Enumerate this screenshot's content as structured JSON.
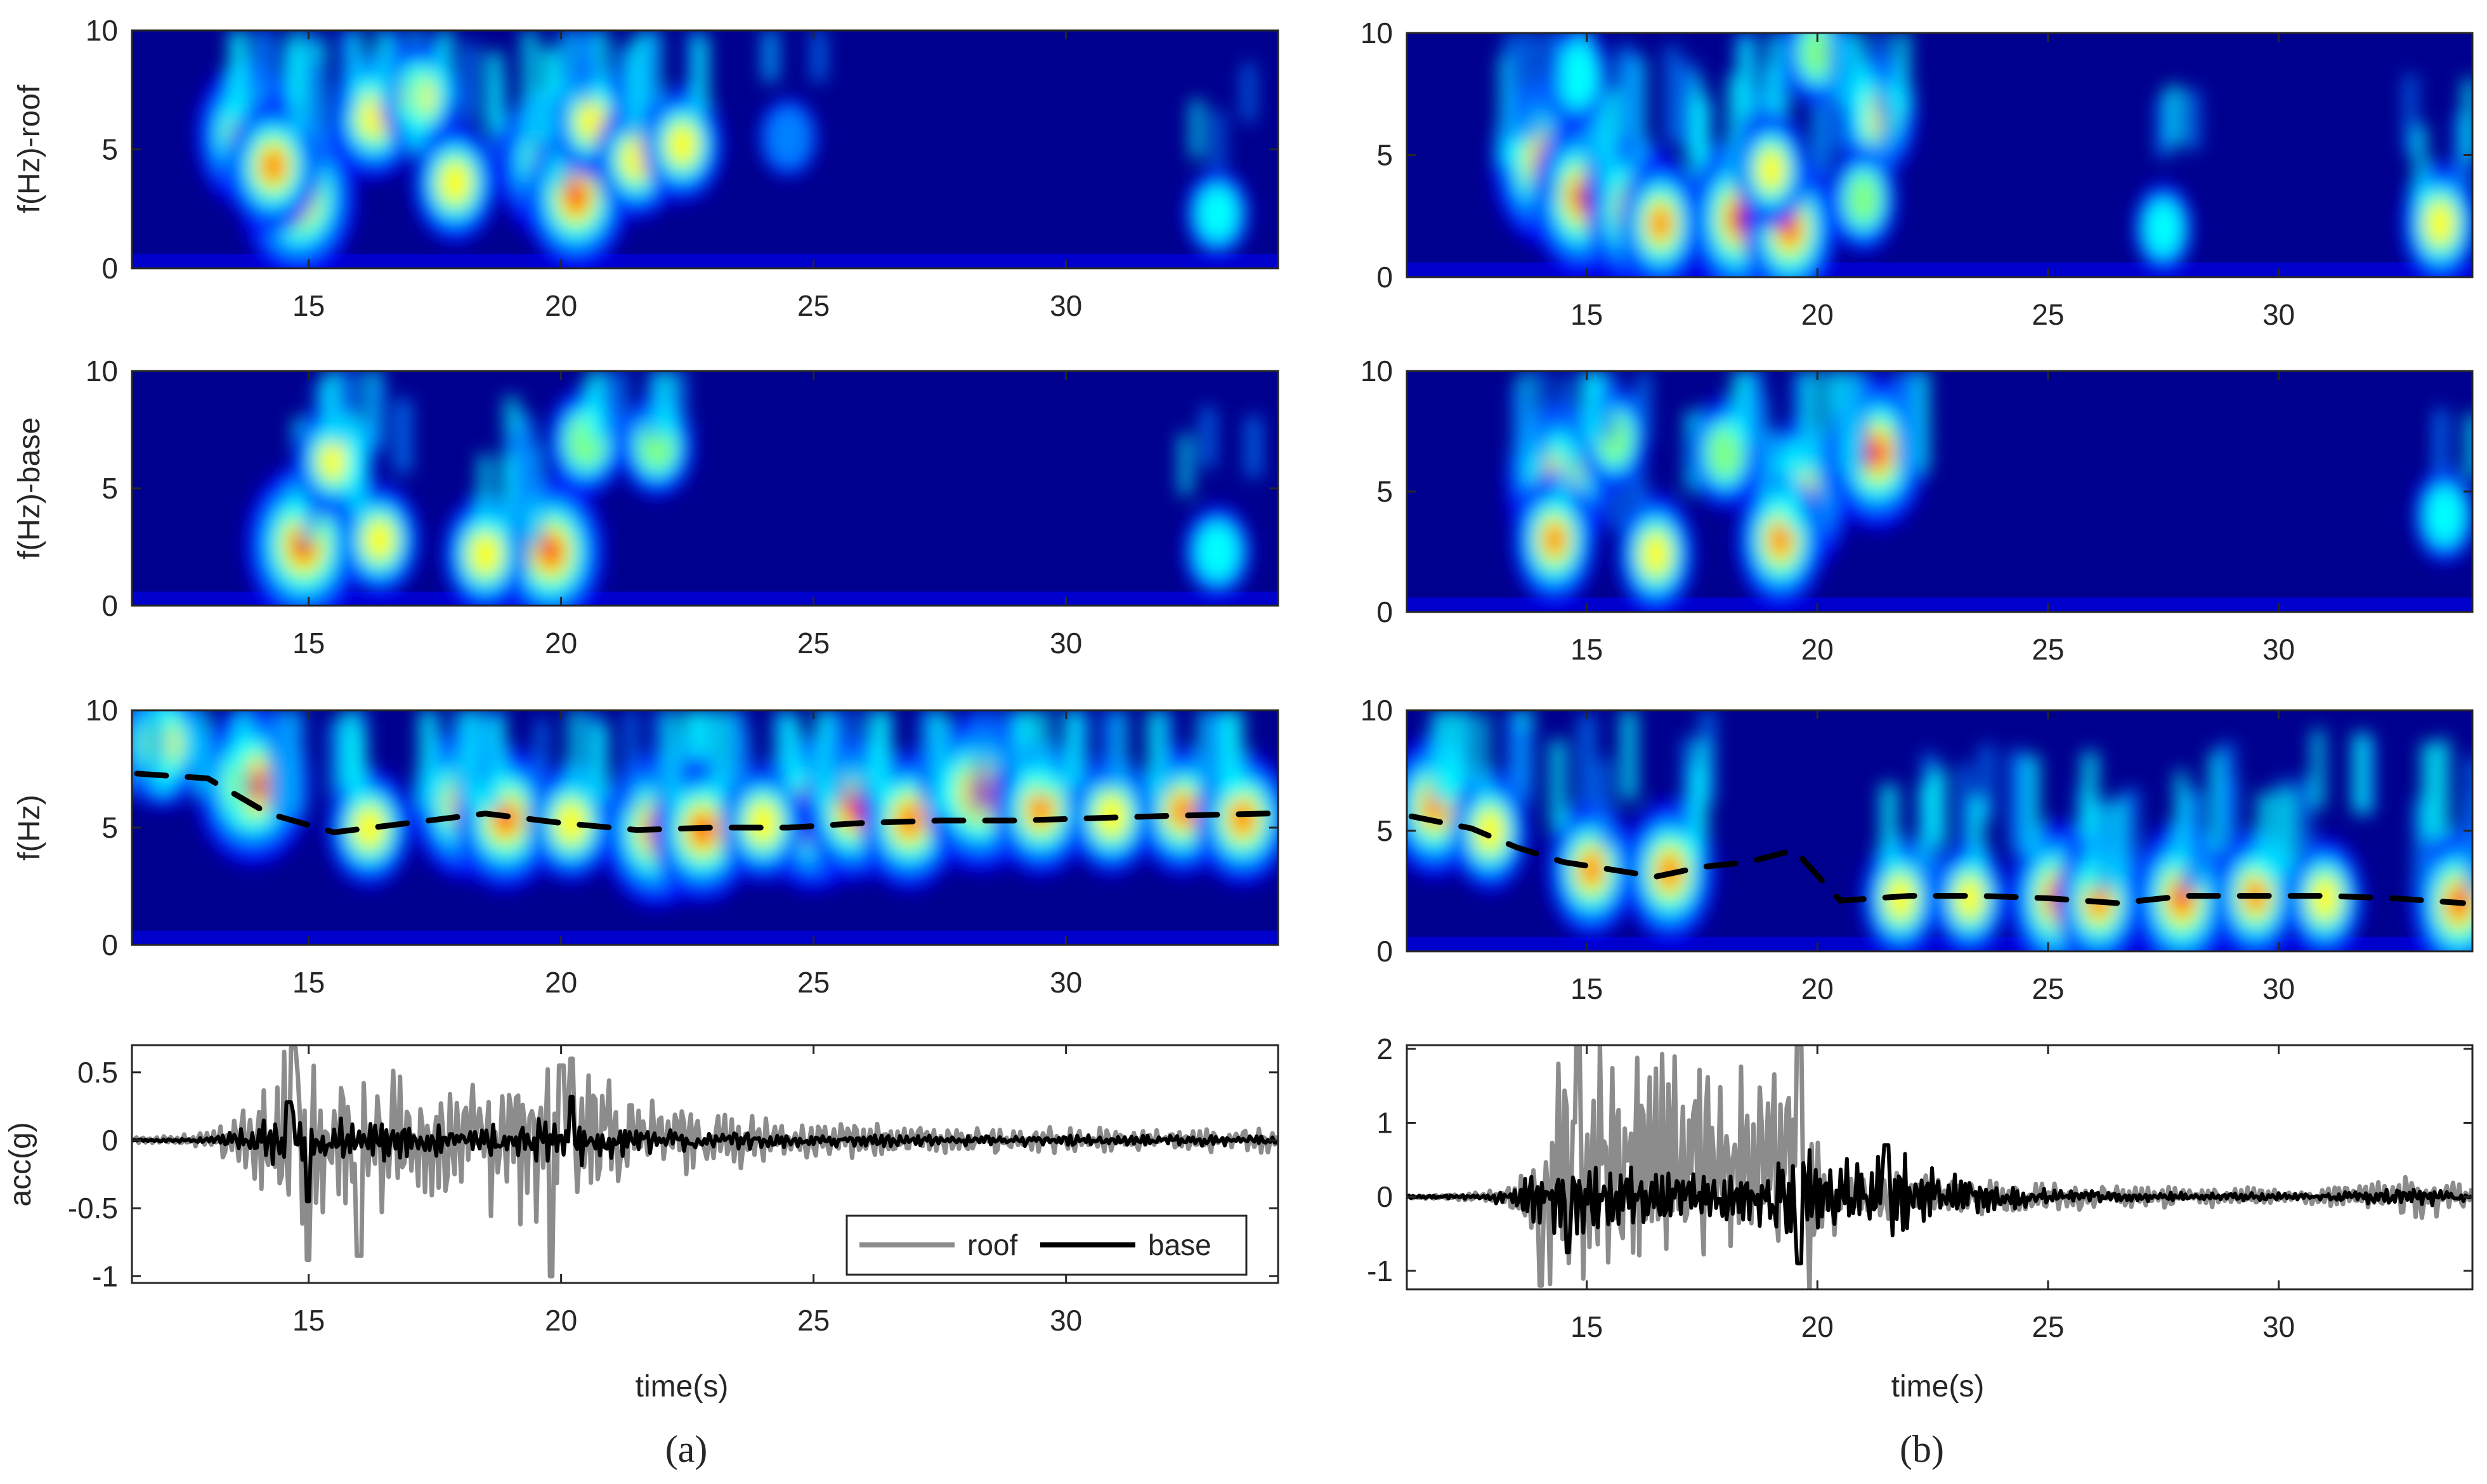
{
  "colors": {
    "colormap": [
      "#00008f",
      "#0000ff",
      "#0080ff",
      "#00ffff",
      "#80ff80",
      "#ffff00",
      "#ff8000",
      "#ff0000",
      "#800000"
    ],
    "roof": "#8c8c8c",
    "base": "#000000",
    "ridge": "#000000",
    "axis": "#262626"
  },
  "captions": [
    "(a)",
    "(b)"
  ],
  "chart_data": [
    {
      "type": "heatmap",
      "panel": "a",
      "row": 1,
      "ylabel": "f(Hz)-roof",
      "xlim": [
        11.5,
        34.2
      ],
      "ylim": [
        0,
        10
      ],
      "xticks": [
        15,
        20,
        25,
        30
      ],
      "yticks": [
        0,
        5,
        10
      ],
      "hotspots": [
        {
          "t": 14.8,
          "f": 3.0,
          "a": 1.0
        },
        {
          "t": 13.8,
          "f": 5.6,
          "a": 0.85
        },
        {
          "t": 14.3,
          "f": 4.3,
          "a": 0.75
        },
        {
          "t": 16.3,
          "f": 6.4,
          "a": 0.65
        },
        {
          "t": 17.2,
          "f": 7.2,
          "a": 0.55
        },
        {
          "t": 17.9,
          "f": 3.6,
          "a": 0.6
        },
        {
          "t": 19.8,
          "f": 4.4,
          "a": 0.9
        },
        {
          "t": 20.3,
          "f": 3.0,
          "a": 0.85
        },
        {
          "t": 20.6,
          "f": 6.2,
          "a": 0.55
        },
        {
          "t": 21.5,
          "f": 4.6,
          "a": 0.6
        },
        {
          "t": 22.4,
          "f": 5.2,
          "a": 0.55
        },
        {
          "t": 33.0,
          "f": 2.3,
          "a": 0.3
        },
        {
          "t": 24.5,
          "f": 5.5,
          "a": 0.2
        }
      ]
    },
    {
      "type": "heatmap",
      "panel": "a",
      "row": 2,
      "ylabel": "f(Hz)-base",
      "xlim": [
        11.5,
        34.2
      ],
      "ylim": [
        0,
        10
      ],
      "xticks": [
        15,
        20,
        25,
        30
      ],
      "yticks": [
        0,
        5,
        10
      ],
      "hotspots": [
        {
          "t": 14.9,
          "f": 2.6,
          "a": 1.0
        },
        {
          "t": 15.5,
          "f": 6.2,
          "a": 0.55
        },
        {
          "t": 16.4,
          "f": 2.8,
          "a": 0.55
        },
        {
          "t": 19.8,
          "f": 2.3,
          "a": 0.9
        },
        {
          "t": 18.5,
          "f": 2.2,
          "a": 0.6
        },
        {
          "t": 20.5,
          "f": 7.0,
          "a": 0.5
        },
        {
          "t": 21.9,
          "f": 6.8,
          "a": 0.45
        },
        {
          "t": 33.0,
          "f": 2.3,
          "a": 0.35
        }
      ]
    },
    {
      "type": "heatmap",
      "panel": "a",
      "row": 3,
      "ylabel": "f(Hz)",
      "xlim": [
        11.5,
        34.2
      ],
      "ylim": [
        0,
        10
      ],
      "xticks": [
        15,
        20,
        25,
        30
      ],
      "yticks": [
        0,
        5,
        10
      ],
      "ridge_t": [
        11.6,
        13.0,
        14.2,
        15.5,
        17.0,
        18.5,
        20.0,
        21.5,
        23.0,
        24.5,
        26.0,
        27.5,
        29.0,
        30.5,
        32.0,
        34.0
      ],
      "ridge_f": [
        7.3,
        7.1,
        5.6,
        4.8,
        5.2,
        5.6,
        5.2,
        4.9,
        5.0,
        5.0,
        5.2,
        5.3,
        5.3,
        5.4,
        5.5,
        5.6
      ],
      "hotspots": [
        {
          "t": 13.9,
          "f": 6.8,
          "a": 1.0
        },
        {
          "t": 12.1,
          "f": 8.6,
          "a": 0.7
        },
        {
          "t": 18.1,
          "f": 6.0,
          "a": 0.9
        },
        {
          "t": 18.9,
          "f": 5.4,
          "a": 0.85
        },
        {
          "t": 21.9,
          "f": 4.9,
          "a": 0.95
        },
        {
          "t": 22.8,
          "f": 4.9,
          "a": 0.85
        },
        {
          "t": 25.0,
          "f": 5.6,
          "a": 0.95
        },
        {
          "t": 25.8,
          "f": 5.8,
          "a": 0.85
        },
        {
          "t": 26.9,
          "f": 5.3,
          "a": 0.8
        },
        {
          "t": 28.3,
          "f": 6.5,
          "a": 1.0
        },
        {
          "t": 29.5,
          "f": 5.8,
          "a": 0.75
        },
        {
          "t": 32.3,
          "f": 5.7,
          "a": 0.7
        },
        {
          "t": 33.5,
          "f": 5.4,
          "a": 0.75
        },
        {
          "t": 16.2,
          "f": 5.0,
          "a": 0.6
        },
        {
          "t": 20.2,
          "f": 5.2,
          "a": 0.6
        },
        {
          "t": 24.0,
          "f": 5.2,
          "a": 0.6
        },
        {
          "t": 30.9,
          "f": 5.5,
          "a": 0.6
        }
      ]
    },
    {
      "type": "line",
      "panel": "a",
      "row": 4,
      "ylabel": "acc(g)",
      "xlabel": "time(s)",
      "xlim": [
        11.5,
        34.2
      ],
      "ylim": [
        -1.05,
        0.7
      ],
      "xticks": [
        15,
        20,
        25,
        30
      ],
      "yticks": [
        -1,
        -0.5,
        0,
        0.5
      ],
      "ytick_labels": [
        "-1",
        "-0.5",
        "0",
        "0.5"
      ],
      "legend": {
        "position": "lower-right",
        "entries": [
          "roof",
          "base"
        ]
      },
      "envelope": {
        "t": [
          11.5,
          13.0,
          13.8,
          14.6,
          15.5,
          16.5,
          18.0,
          19.5,
          20.3,
          21.5,
          23.0,
          25.0,
          28.0,
          31.0,
          34.2
        ],
        "roof": [
          0.02,
          0.06,
          0.3,
          0.8,
          0.6,
          0.55,
          0.45,
          0.75,
          0.9,
          0.35,
          0.25,
          0.15,
          0.1,
          0.1,
          0.1
        ],
        "base": [
          0.01,
          0.02,
          0.12,
          0.25,
          0.18,
          0.16,
          0.12,
          0.2,
          0.22,
          0.1,
          0.08,
          0.05,
          0.04,
          0.05,
          0.04
        ]
      },
      "series": [
        {
          "name": "roof",
          "t": [
            14.7,
            15.0,
            16.0,
            19.8,
            20.2,
            20.0
          ],
          "peaks": [
            0.68,
            -0.88,
            -0.85,
            -1.0,
            0.6,
            0.55
          ]
        },
        {
          "name": "base",
          "t": [
            14.6,
            15.0,
            20.2
          ],
          "peaks": [
            0.28,
            -0.45,
            0.32
          ]
        }
      ]
    },
    {
      "type": "heatmap",
      "panel": "b",
      "row": 1,
      "xlim": [
        11.1,
        34.2
      ],
      "ylim": [
        0,
        10
      ],
      "xticks": [
        15,
        20,
        25,
        30
      ],
      "yticks": [
        0,
        5,
        10
      ],
      "hotspots": [
        {
          "t": 14.1,
          "f": 4.7,
          "a": 1.0
        },
        {
          "t": 14.9,
          "f": 3.3,
          "a": 0.95
        },
        {
          "t": 16.0,
          "f": 2.7,
          "a": 0.85
        },
        {
          "t": 16.6,
          "f": 2.2,
          "a": 0.7
        },
        {
          "t": 18.3,
          "f": 2.4,
          "a": 0.95
        },
        {
          "t": 19.4,
          "f": 2.0,
          "a": 0.85
        },
        {
          "t": 19.0,
          "f": 4.4,
          "a": 0.55
        },
        {
          "t": 21.3,
          "f": 6.6,
          "a": 0.6
        },
        {
          "t": 21.0,
          "f": 3.2,
          "a": 0.45
        },
        {
          "t": 20.0,
          "f": 9.2,
          "a": 0.45
        },
        {
          "t": 14.8,
          "f": 8.2,
          "a": 0.4
        },
        {
          "t": 33.5,
          "f": 2.2,
          "a": 0.6
        },
        {
          "t": 27.5,
          "f": 2.0,
          "a": 0.3
        }
      ]
    },
    {
      "type": "heatmap",
      "panel": "b",
      "row": 2,
      "xlim": [
        11.1,
        34.2
      ],
      "ylim": [
        0,
        10
      ],
      "xticks": [
        15,
        20,
        25,
        30
      ],
      "yticks": [
        0,
        5,
        10
      ],
      "hotspots": [
        {
          "t": 14.4,
          "f": 5.3,
          "a": 1.0
        },
        {
          "t": 14.3,
          "f": 3.0,
          "a": 0.7
        },
        {
          "t": 16.5,
          "f": 2.4,
          "a": 0.6
        },
        {
          "t": 19.6,
          "f": 4.7,
          "a": 0.9
        },
        {
          "t": 19.2,
          "f": 3.0,
          "a": 0.75
        },
        {
          "t": 21.3,
          "f": 6.6,
          "a": 0.9
        },
        {
          "t": 18.0,
          "f": 6.6,
          "a": 0.5
        },
        {
          "t": 15.6,
          "f": 7.2,
          "a": 0.45
        },
        {
          "t": 33.6,
          "f": 4.0,
          "a": 0.35
        }
      ]
    },
    {
      "type": "heatmap",
      "panel": "b",
      "row": 3,
      "xlim": [
        11.1,
        34.2
      ],
      "ylim": [
        0,
        10
      ],
      "xticks": [
        15,
        20,
        25,
        30
      ],
      "yticks": [
        0,
        5,
        10
      ],
      "ridge_t": [
        11.2,
        12.5,
        13.5,
        14.5,
        15.5,
        16.5,
        17.5,
        18.5,
        19.5,
        20.5,
        22.0,
        23.5,
        25.0,
        26.5,
        28.0,
        29.5,
        31.0,
        32.5,
        34.0
      ],
      "ridge_f": [
        5.6,
        5.1,
        4.3,
        3.7,
        3.4,
        3.1,
        3.5,
        3.7,
        4.2,
        2.1,
        2.3,
        2.3,
        2.2,
        2.0,
        2.3,
        2.3,
        2.3,
        2.2,
        2.0
      ],
      "hotspots": [
        {
          "t": 11.7,
          "f": 6.0,
          "a": 0.8
        },
        {
          "t": 12.9,
          "f": 5.0,
          "a": 0.6
        },
        {
          "t": 15.1,
          "f": 3.4,
          "a": 0.75
        },
        {
          "t": 16.8,
          "f": 3.3,
          "a": 0.8
        },
        {
          "t": 25.2,
          "f": 2.2,
          "a": 0.9
        },
        {
          "t": 26.1,
          "f": 2.1,
          "a": 0.75
        },
        {
          "t": 27.9,
          "f": 2.2,
          "a": 0.9
        },
        {
          "t": 29.5,
          "f": 2.3,
          "a": 0.7
        },
        {
          "t": 33.9,
          "f": 2.0,
          "a": 0.85
        },
        {
          "t": 21.8,
          "f": 2.2,
          "a": 0.6
        },
        {
          "t": 23.3,
          "f": 2.2,
          "a": 0.55
        },
        {
          "t": 31.0,
          "f": 2.2,
          "a": 0.6
        }
      ]
    },
    {
      "type": "line",
      "panel": "b",
      "row": 4,
      "xlabel": "time(s)",
      "xlim": [
        11.1,
        34.2
      ],
      "ylim": [
        -1.25,
        2.05
      ],
      "xticks": [
        15,
        20,
        25,
        30
      ],
      "yticks": [
        -1,
        0,
        1,
        2
      ],
      "ytick_labels": [
        "-1",
        "0",
        "1",
        "2"
      ],
      "envelope": {
        "t": [
          11.1,
          12.5,
          13.5,
          14.2,
          14.8,
          16.0,
          17.5,
          19.0,
          19.6,
          20.5,
          21.5,
          23.0,
          25.0,
          28.0,
          31.0,
          33.0,
          34.2
        ],
        "roof": [
          0.02,
          0.05,
          0.25,
          1.25,
          2.0,
          1.6,
          1.5,
          1.2,
          1.65,
          0.4,
          0.35,
          0.3,
          0.2,
          0.15,
          0.12,
          0.35,
          0.15
        ],
        "base": [
          0.02,
          0.03,
          0.15,
          0.55,
          0.6,
          0.45,
          0.4,
          0.45,
          0.75,
          0.5,
          0.7,
          0.3,
          0.1,
          0.06,
          0.05,
          0.15,
          0.05
        ]
      },
      "series": [
        {
          "name": "roof",
          "t": [
            14.8,
            14.0,
            19.6
          ],
          "peaks": [
            2.0,
            -1.2,
            1.65
          ]
        },
        {
          "name": "base",
          "t": [
            19.6,
            21.5,
            14.6
          ],
          "peaks": [
            -0.9,
            0.7,
            -0.75
          ]
        }
      ]
    }
  ]
}
